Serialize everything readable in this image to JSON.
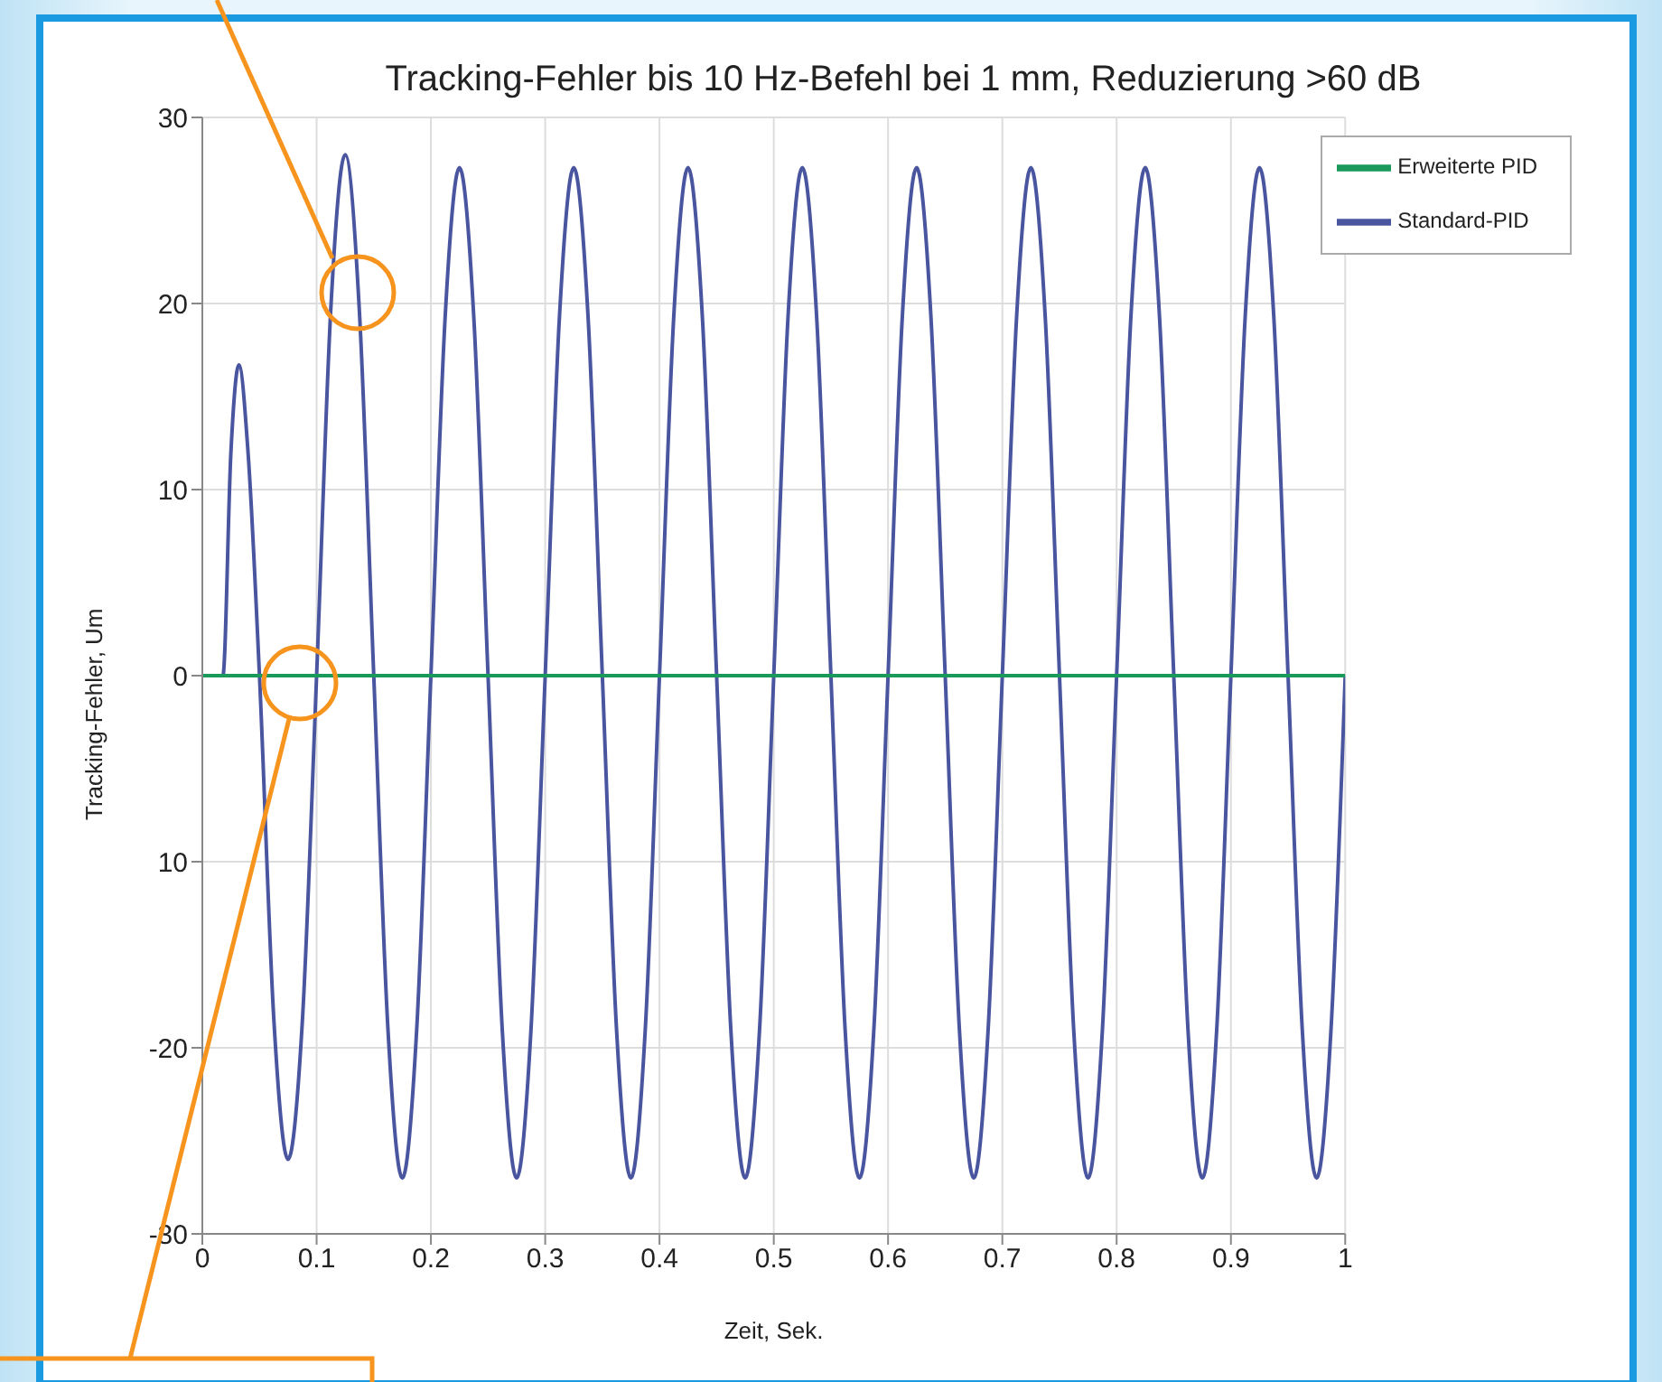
{
  "chart_data": {
    "type": "line",
    "title": "Tracking-Fehler bis 10 Hz-Befehl bei 1 mm, Reduzierung >60 dB",
    "xlabel": "Zeit, Sek.",
    "ylabel": "Tracking-Fehler, Um",
    "xlim": [
      0,
      1
    ],
    "xticks": [
      0,
      0.1,
      0.2,
      0.3,
      0.4,
      0.5,
      0.6,
      0.7,
      0.8,
      0.9,
      1
    ],
    "ylim": [
      -30,
      30
    ],
    "yticks": [
      -30,
      -20,
      {
        "value": -10,
        "label": "10"
      },
      0,
      10,
      20,
      30
    ],
    "grid": true,
    "legend": "top right",
    "marker": "none",
    "line_style": "solid",
    "series": [
      {
        "name": "Standard-PID",
        "color": "#4a55a0",
        "x": [
          0,
          0.018,
          0.025,
          0.032,
          0.04,
          0.05,
          0.0625,
          0.075,
          0.0875,
          0.1,
          0.1125,
          0.125,
          0.1375,
          0.15,
          0.1625,
          0.175,
          0.1875,
          0.2,
          0.2125,
          0.225,
          0.2375,
          0.25,
          0.2625,
          0.275,
          0.2875,
          0.3,
          0.3125,
          0.325,
          0.3375,
          0.35,
          0.3625,
          0.375,
          0.3875,
          0.4,
          0.4125,
          0.425,
          0.4375,
          0.45,
          0.4625,
          0.475,
          0.4875,
          0.5,
          0.5125,
          0.525,
          0.5375,
          0.55,
          0.5625,
          0.575,
          0.5875,
          0.6,
          0.6125,
          0.625,
          0.6375,
          0.65,
          0.6625,
          0.675,
          0.6875,
          0.7,
          0.7125,
          0.725,
          0.7375,
          0.75,
          0.7625,
          0.775,
          0.7875,
          0.8,
          0.8125,
          0.825,
          0.8375,
          0.85,
          0.8625,
          0.875,
          0.8875,
          0.9,
          0.9125,
          0.925,
          0.9375,
          0.95,
          0.9625,
          0.975,
          0.9875,
          1
        ],
        "values": [
          0,
          0,
          12,
          16.7,
          12,
          0,
          -18.4,
          -26,
          -18.6,
          0,
          19.8,
          28,
          19.5,
          0,
          -19.1,
          -27,
          -19.1,
          0,
          19.3,
          27.3,
          19.3,
          0,
          -19.1,
          -27,
          -19.1,
          0,
          19.3,
          27.3,
          19.3,
          0,
          -19.1,
          -27,
          -19.1,
          0,
          19.3,
          27.3,
          19.3,
          0,
          -19.1,
          -27,
          -19.1,
          0,
          19.3,
          27.3,
          19.3,
          0,
          -19.1,
          -27,
          -19.1,
          0,
          19.3,
          27.3,
          19.3,
          0,
          -19.1,
          -27,
          -19.1,
          0,
          19.3,
          27.3,
          19.3,
          0,
          -19.1,
          -27,
          -19.1,
          0,
          19.3,
          27.3,
          19.3,
          0,
          -19.1,
          -27,
          -19.1,
          0,
          19.3,
          27.3,
          19.3,
          0,
          -19.1,
          -27,
          -19.1,
          0
        ]
      },
      {
        "name": "Erweiterte PID",
        "color": "#1a9a5a",
        "x": [
          0,
          0.25,
          0.5,
          0.75,
          1
        ],
        "values": [
          0,
          0,
          0,
          0,
          0
        ]
      }
    ]
  }
}
